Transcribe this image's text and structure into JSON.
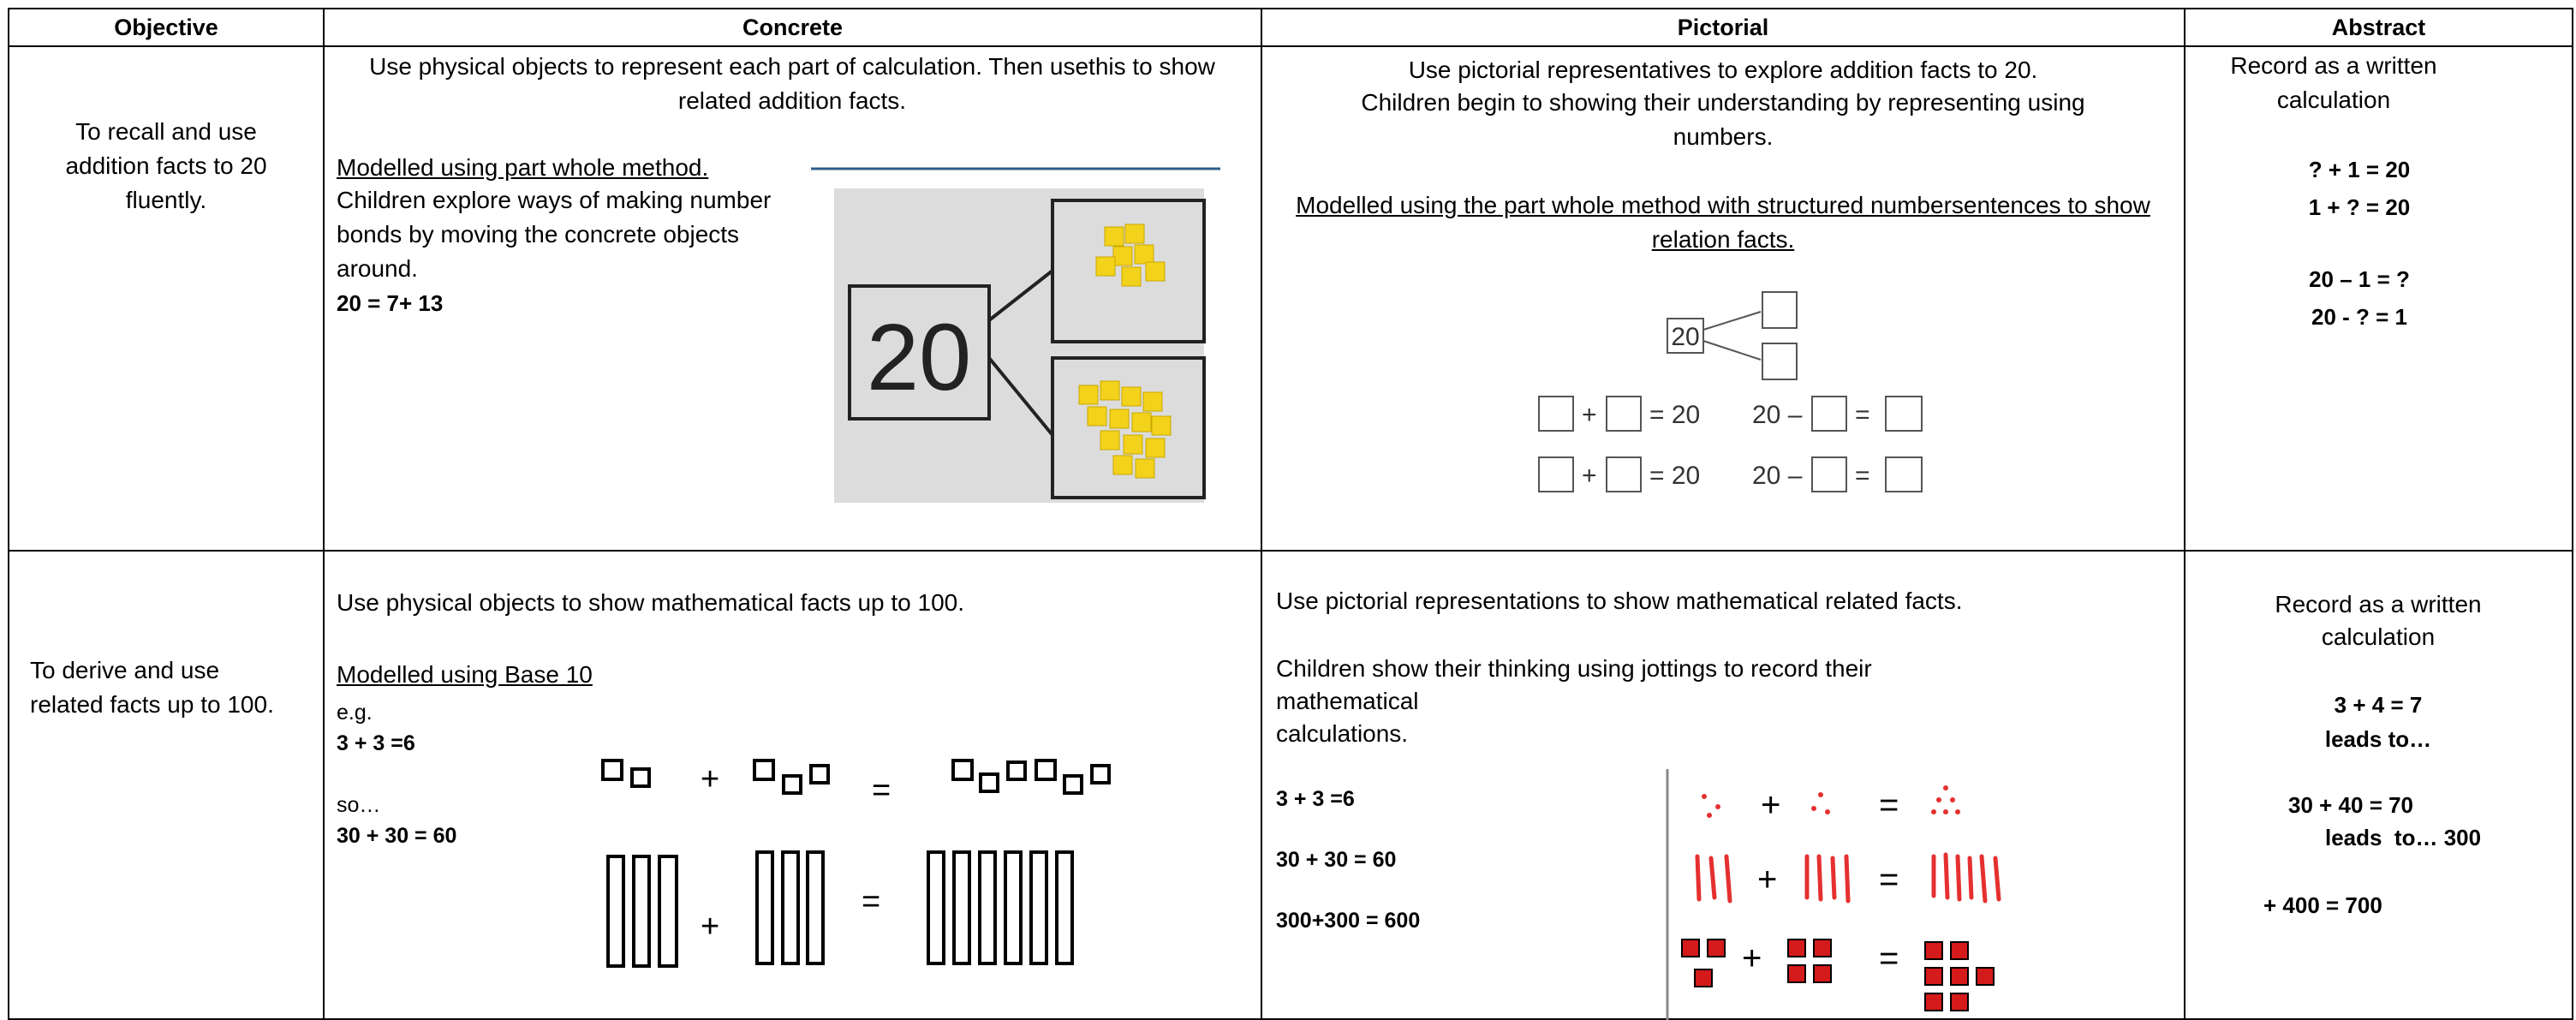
{
  "table": {
    "headers": [
      "Objective",
      "Concrete",
      "Pictorial",
      "Abstract"
    ],
    "rows": [
      {
        "objective": "To recall and use addition facts to 20 fluently.",
        "concrete": {
          "intro": "Use physical objects to represent each part of calculation. Then usethis to show related addition facts.",
          "model": "Modelled using part whole method.",
          "text": "Children explore ways of making number bonds by moving the concrete objects around.",
          "equation": "20 = 7+ 13",
          "image_number": "20"
        },
        "pictorial": {
          "intro": "Use pictorial representatives to explore addition facts to 20.",
          "text": "Children begin to showing their understanding by representing using numbers.",
          "model": "Modelled using the part whole method with structured numbersentences to show relation facts.",
          "diagram": {
            "whole": "20",
            "plus": "+",
            "sum": "= 20",
            "difference": "20 –",
            "equals": "="
          }
        },
        "abstract": {
          "intro": "Record as a written calculation",
          "equations": [
            "? + 1 = 20",
            "1 + ? = 20",
            "20 – 1 = ?",
            "20 - ? = 1"
          ]
        }
      },
      {
        "objective": "To derive and use related facts up to 100.",
        "concrete": {
          "intro": "Use physical objects to show mathematical facts up to 100.",
          "model": "Modelled using Base 10",
          "lines": [
            "e.g.",
            "3 + 3 =6",
            "so…",
            "30 + 30 = 60"
          ],
          "diagram": {
            "plus": "+",
            "equals": "="
          }
        },
        "pictorial": {
          "intro": "Use pictorial representations to show mathematical related facts.",
          "text_lines": [
            "Children show their thinking using jottings to record their",
            "mathematical",
            "calculations."
          ],
          "equations": [
            "3 + 3 =6",
            "30 + 30 = 60",
            "300+300 = 600"
          ],
          "diagram": {
            "plus": "+",
            "equals": "="
          }
        },
        "abstract": {
          "intro_lines": [
            "Record as a written",
            "calculation"
          ],
          "lines": [
            "3 + 4 = 7",
            "leads to…",
            "30 + 40 = 70",
            "leads  to… 300",
            "+ 400 = 700"
          ]
        }
      }
    ]
  }
}
